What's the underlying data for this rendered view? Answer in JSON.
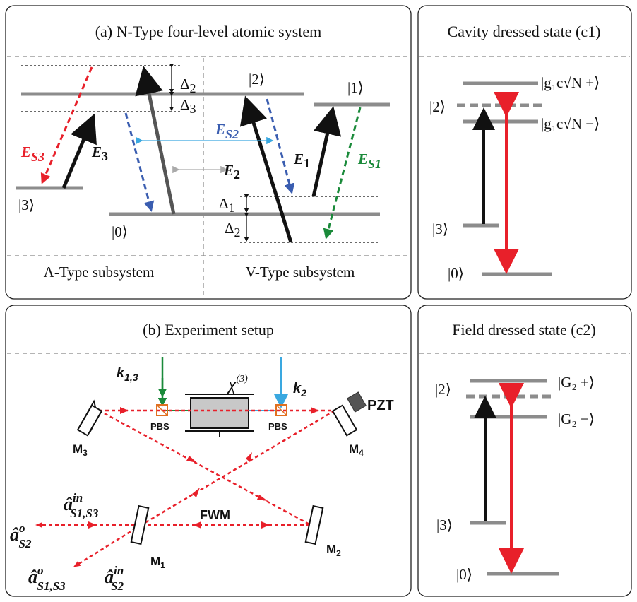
{
  "panel_a": {
    "title": "(a) N-Type four-level atomic system",
    "left_caption": "Λ-Type  subsystem",
    "right_caption": "V-Type  subsystem",
    "states": {
      "s0": "|0⟩",
      "s1": "|1⟩",
      "s2": "|2⟩",
      "s3": "|3⟩"
    },
    "detunings": {
      "d1": "Δ",
      "d1_sub": "1",
      "d2": "Δ",
      "d2_sub": "2",
      "d3": "Δ",
      "d3_sub": "3"
    },
    "fields": {
      "E1": "E",
      "E1_sub": "1",
      "E2": "E",
      "E2_sub": "2",
      "E3": "E",
      "E3_sub": "3",
      "ES1": "E",
      "ES1_sub": "S1",
      "ES2": "E",
      "ES2_sub": "S2",
      "ES3": "E",
      "ES3_sub": "S3"
    }
  },
  "panel_b": {
    "title": "(b) Experiment setup",
    "chi": "χ",
    "chi_sup": "(3)",
    "k13": "k",
    "k13_sub": "1,3",
    "k2": "k",
    "k2_sub": "2",
    "pzt": "PZT",
    "pbs": "PBS",
    "fwm": "FWM",
    "mirrors": {
      "m1": "M",
      "m1_sub": "1",
      "m2": "M",
      "m2_sub": "2",
      "m3": "M",
      "m3_sub": "3",
      "m4": "M",
      "m4_sub": "4"
    },
    "ops": {
      "a_in_s13": "â",
      "a_in_s13_sup": "in",
      "a_in_s13_sub": "S1,S3",
      "a_o_s2": "â",
      "a_o_s2_sup": "o",
      "a_o_s2_sub": "S2",
      "a_o_s13": "â",
      "a_o_s13_sup": "o",
      "a_o_s13_sub": "S1,S3",
      "a_in_s2": "â",
      "a_in_s2_sup": "in",
      "a_in_s2_sub": "S2"
    }
  },
  "panel_c1": {
    "title": "Cavity dressed state (c1)",
    "s0": "|0⟩",
    "s2": "|2⟩",
    "s3": "|3⟩",
    "plus": "|g₁c√N +⟩",
    "minus": "|g₁c√N −⟩"
  },
  "panel_c2": {
    "title": "Field dressed state (c2)",
    "s0": "|0⟩",
    "s2": "|2⟩",
    "s3": "|3⟩",
    "plus": "|G₂ +⟩",
    "minus": "|G₂ −⟩"
  },
  "colors": {
    "red": "#e8202a",
    "blue": "#3a5db0",
    "green": "#1a8a3a",
    "cyan": "#3aa8e0",
    "gray": "#8c8c8c",
    "orange": "#e07020"
  }
}
